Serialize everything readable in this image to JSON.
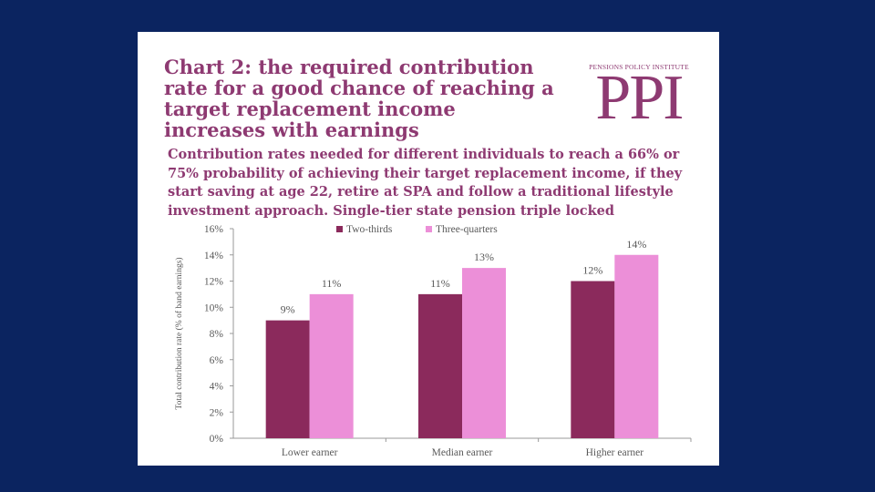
{
  "logo": {
    "small_text": "PENSIONS POLICY INSTITUTE",
    "big_text": "PPI"
  },
  "colors": {
    "background": "#0b2460",
    "accent": "#8e3a72",
    "series1": "#8b2a5c",
    "series2": "#ec8fd8"
  },
  "chart_data": {
    "type": "bar",
    "title": "Chart 2: the required contribution rate for a good chance of reaching a target replacement income increases with earnings",
    "subtitle": "Contribution rates needed for different individuals to reach a 66% or 75% probability of achieving their target replacement income, if they start saving at age 22, retire at SPA and follow a traditional lifestyle investment approach. Single-tier state pension triple locked",
    "categories": [
      "Lower earner",
      "Median earner",
      "Higher earner"
    ],
    "series": [
      {
        "name": "Two-thirds",
        "values": [
          9,
          11,
          12
        ],
        "labels": [
          "9%",
          "11%",
          "12%"
        ],
        "color": "#8b2a5c"
      },
      {
        "name": "Three-quarters",
        "values": [
          11,
          13,
          14
        ],
        "labels": [
          "11%",
          "13%",
          "14%"
        ],
        "color": "#ec8fd8"
      }
    ],
    "xlabel": "",
    "ylabel": "Total contribution rate (% of band earnings)",
    "ylim": [
      0,
      16
    ],
    "yticks": [
      "0%",
      "2%",
      "4%",
      "6%",
      "8%",
      "10%",
      "12%",
      "14%",
      "16%"
    ],
    "legend_position": "top"
  }
}
